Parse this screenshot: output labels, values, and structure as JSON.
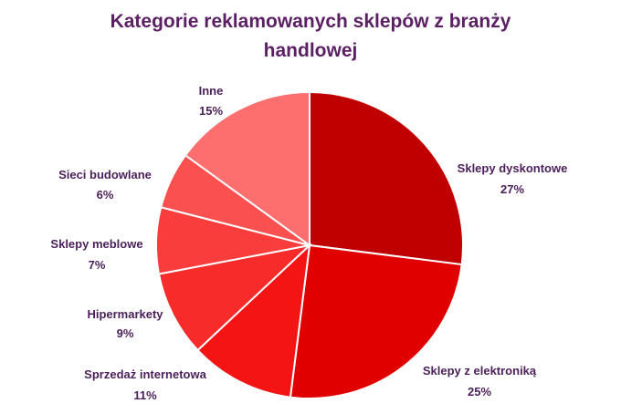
{
  "chart_data": {
    "type": "pie",
    "title_line1": "Kategorie reklamowanych sklepów z branży",
    "title_line2": "handlowej",
    "slices": [
      {
        "label": "Sklepy dyskontowe",
        "value": 27,
        "pct_label": "27%",
        "color": "#c00000"
      },
      {
        "label": "Sklepy z elektroniką",
        "value": 25,
        "pct_label": "25%",
        "color": "#e00000"
      },
      {
        "label": "Sprzedaż internetowa",
        "value": 11,
        "pct_label": "11%",
        "color": "#f41414"
      },
      {
        "label": "Hipermarkety",
        "value": 9,
        "pct_label": "9%",
        "color": "#f82b2b"
      },
      {
        "label": "Sklepy meblowe",
        "value": 7,
        "pct_label": "7%",
        "color": "#f93d3d"
      },
      {
        "label": "Sieci budowlane",
        "value": 6,
        "pct_label": "6%",
        "color": "#fa5050"
      },
      {
        "label": "Inne",
        "value": 15,
        "pct_label": "15%",
        "color": "#fd6e6e"
      }
    ],
    "label_color": "#4b1f5a"
  }
}
